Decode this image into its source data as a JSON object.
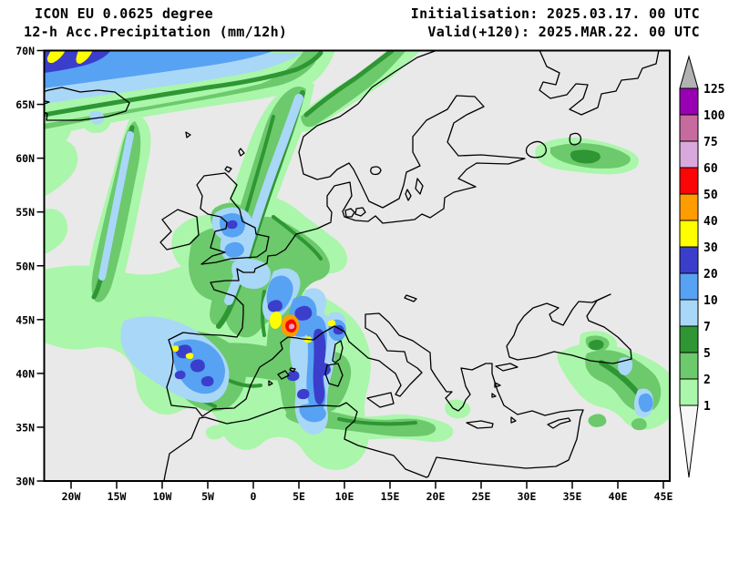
{
  "header": {
    "model_line": "ICON EU 0.0625 degree",
    "product_line": "12-h Acc.Precipitation (mm/12h)",
    "init_line": "Initialisation: 2025.03.17. 00 UTC",
    "valid_line": "Valid(+120): 2025.MAR.22. 00 UTC"
  },
  "map": {
    "background_color": "#e9e9e9",
    "coastline_color": "#000000",
    "frame_color": "#000000",
    "lat_ticks": [
      "70N",
      "65N",
      "60N",
      "55N",
      "50N",
      "45N",
      "40N",
      "35N",
      "30N"
    ],
    "lon_ticks": [
      "20W",
      "15W",
      "10W",
      "5W",
      "0",
      "5E",
      "10E",
      "15E",
      "20E",
      "25E",
      "30E",
      "35E",
      "40E",
      "45E"
    ]
  },
  "colorbar": {
    "boundaries": [
      "125",
      "100",
      "75",
      "60",
      "50",
      "40",
      "30",
      "20",
      "10",
      "7",
      "5",
      "2",
      "1"
    ],
    "band_colors": [
      "#9900b3",
      "#c76a9e",
      "#d9a9de",
      "#fa0606",
      "#ff9c00",
      "#ffff00",
      "#3b3ecb",
      "#57a2f2",
      "#a9d7f7",
      "#2f9634",
      "#6cc96c",
      "#aaf6aa"
    ],
    "above_color": "#b2b2b2",
    "below_color": "#f7f7f7"
  },
  "palette": {
    "light_green": "#aaf6aa",
    "medium_green": "#6cc96c",
    "dark_green": "#2f9634",
    "light_blue": "#a9d7f7",
    "medium_blue": "#57a2f2",
    "dark_blue": "#3b3ecb",
    "yellow": "#ffff00",
    "orange": "#ff9c00",
    "red": "#fa0606",
    "pink": "#f0a0b4"
  }
}
